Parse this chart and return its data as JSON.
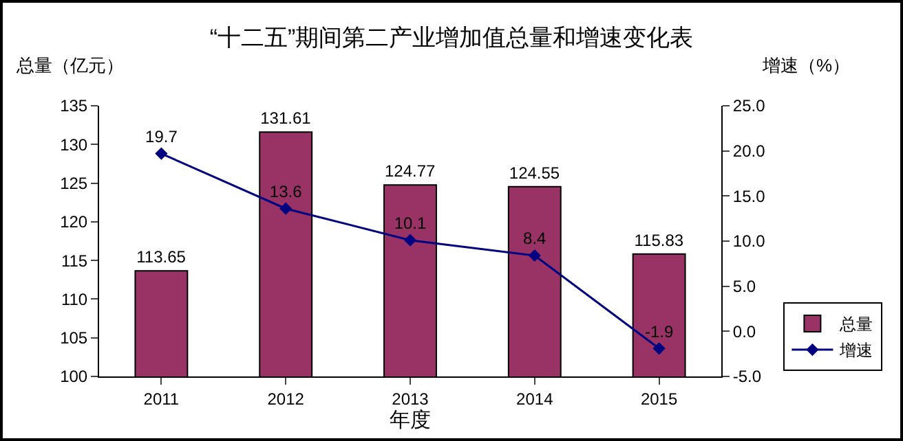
{
  "chart_data": {
    "type": "bar",
    "title": "“十二五”期间第二产业增加值总量和增速变化表",
    "xlabel": "年度",
    "ylabel": "总量（亿元）",
    "y2label": "增速（%）",
    "categories": [
      "2011",
      "2012",
      "2013",
      "2014",
      "2015"
    ],
    "series": [
      {
        "name": "总量",
        "color": "#993366",
        "values": [
          113.65,
          131.61,
          124.77,
          124.55,
          115.83
        ]
      },
      {
        "name": "增速",
        "type": "line",
        "axis": "y2",
        "color": "#000080",
        "marker": "diamond",
        "values": [
          19.7,
          13.6,
          10.1,
          8.4,
          -1.9
        ]
      }
    ],
    "ylim": [
      100,
      135
    ],
    "yticks": [
      100,
      105,
      110,
      115,
      120,
      125,
      130,
      135
    ],
    "y2lim": [
      -5,
      25
    ],
    "y2ticks": [
      {
        "value": -5,
        "label": "-5.0"
      },
      {
        "value": 0,
        "label": "0.0"
      },
      {
        "value": 5,
        "label": "5.0"
      },
      {
        "value": 10,
        "label": "10.0"
      },
      {
        "value": 15,
        "label": "15.0"
      },
      {
        "value": 20,
        "label": "20.0"
      },
      {
        "value": 25,
        "label": "25.0"
      }
    ],
    "data_labels": true,
    "grid": false,
    "legend": "bottom right"
  }
}
